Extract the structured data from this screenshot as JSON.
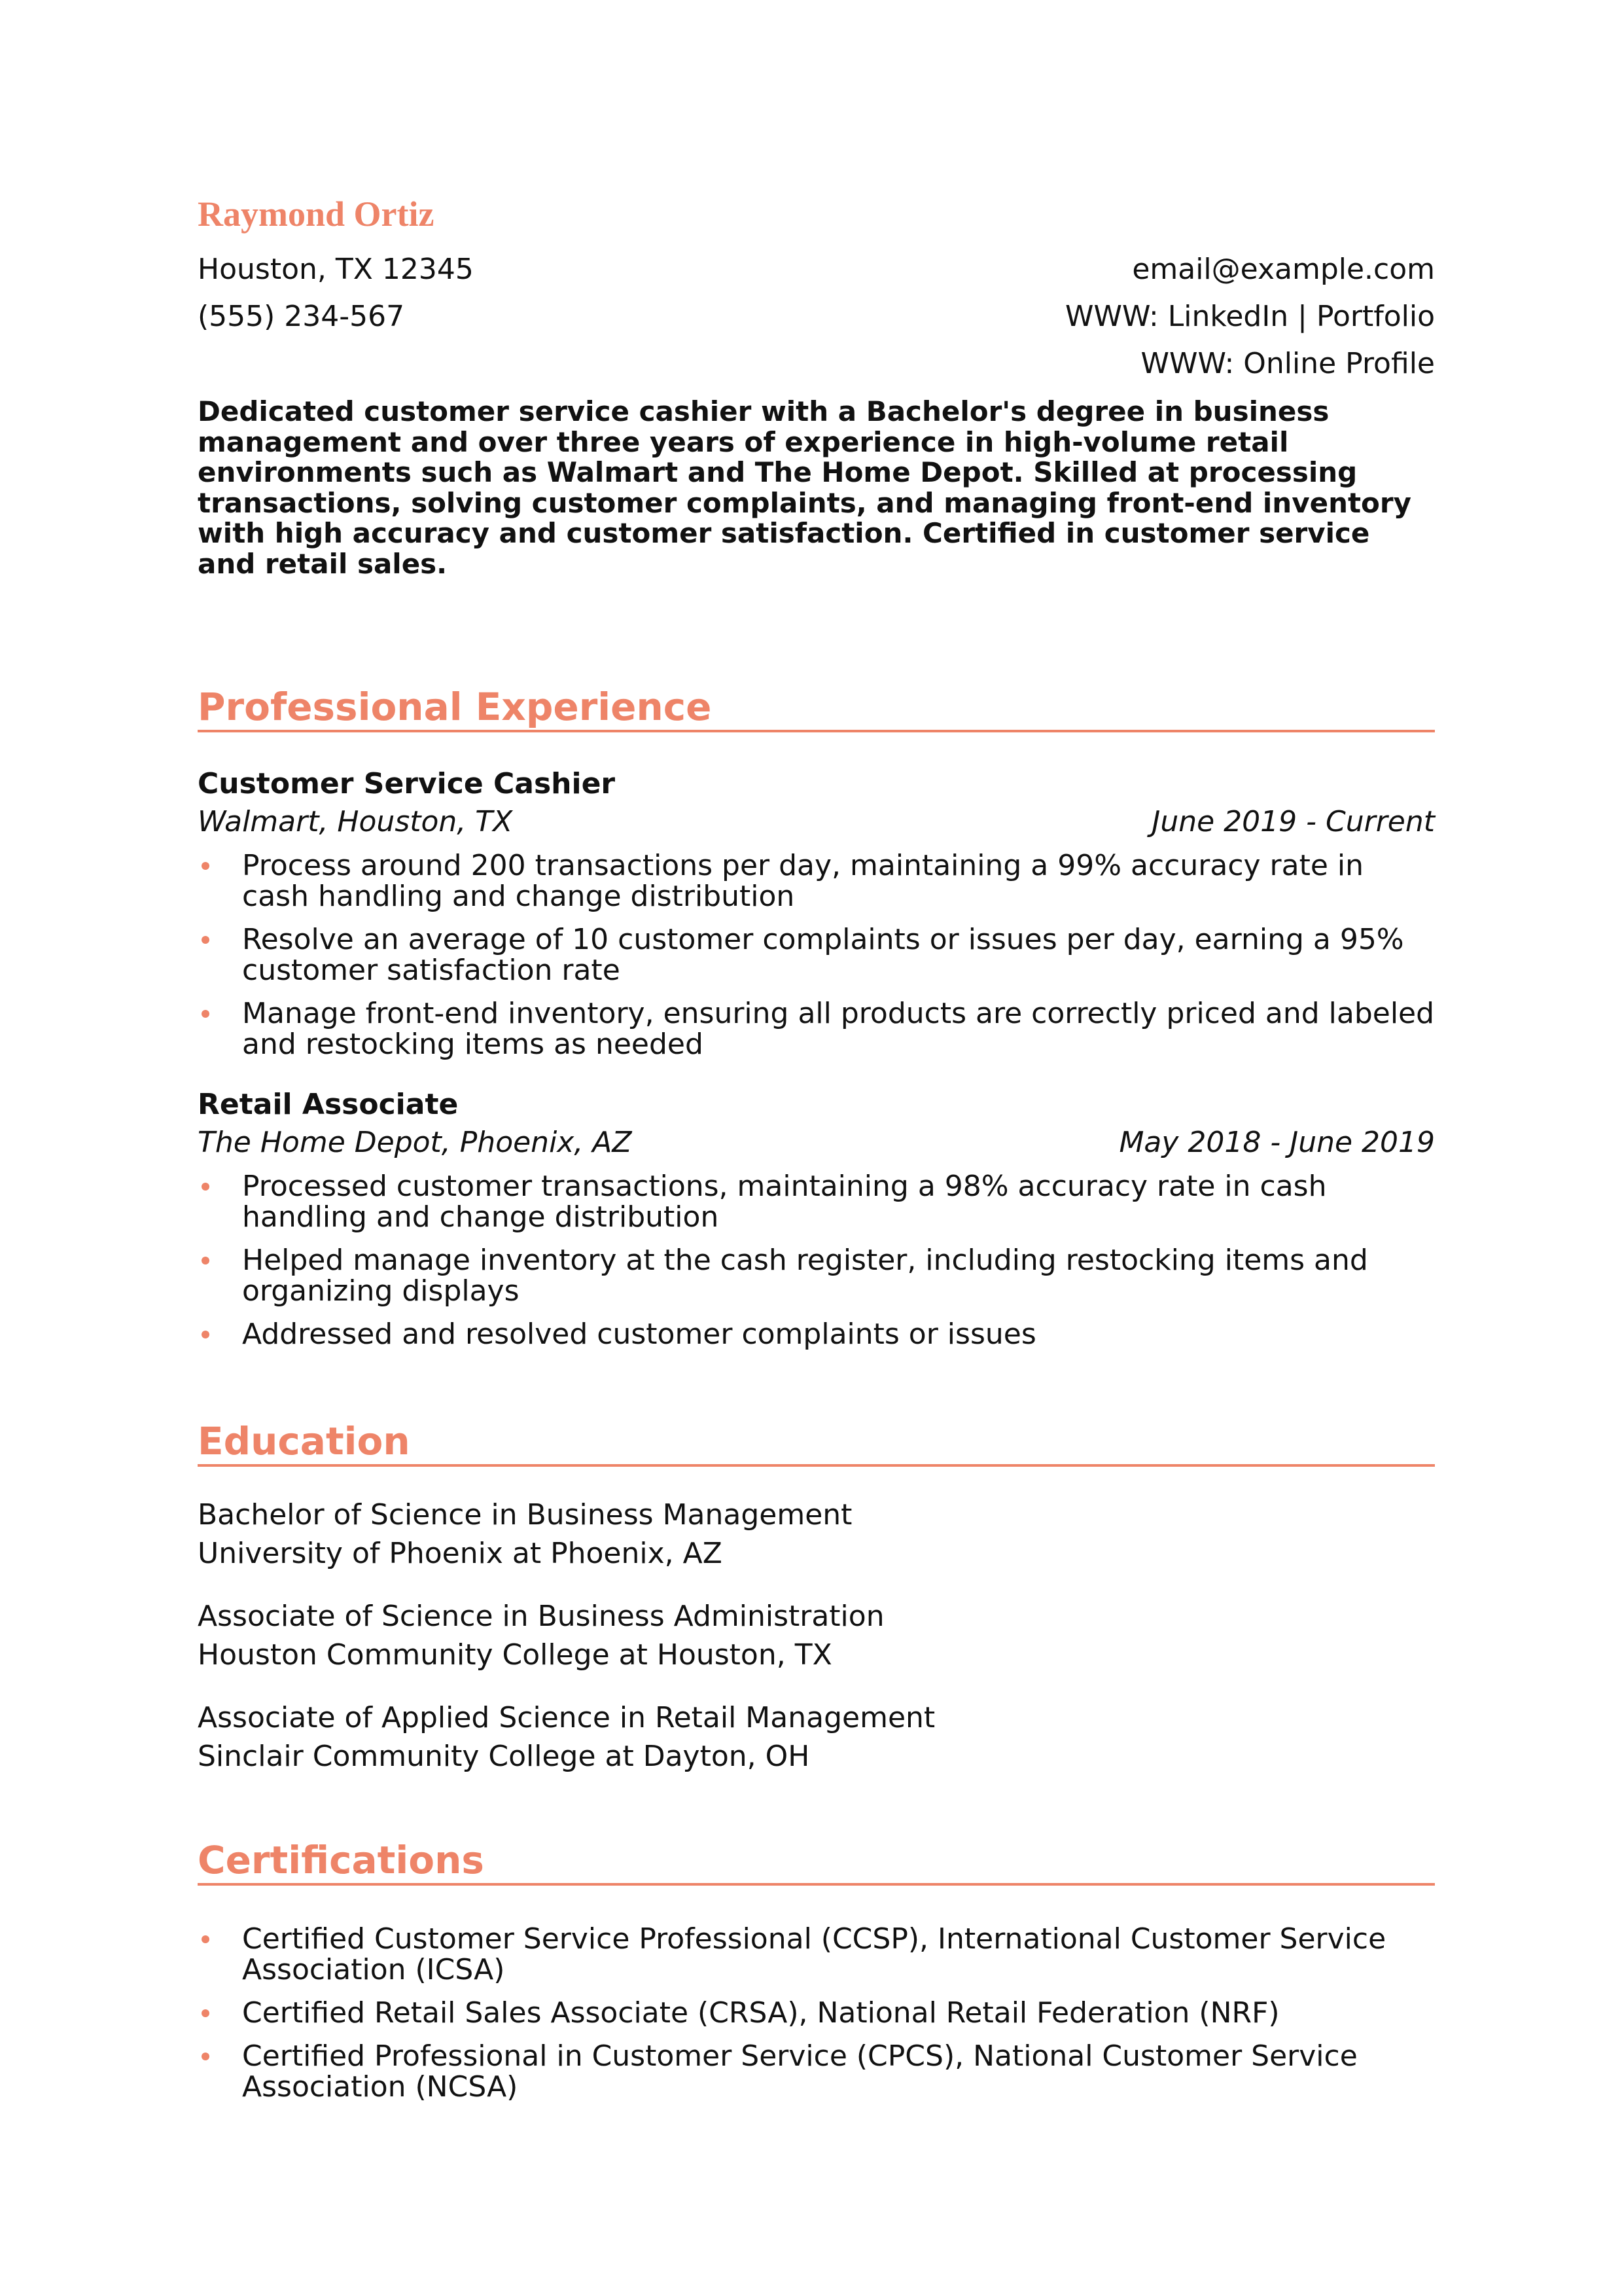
{
  "header": {
    "name": "Raymond Ortiz",
    "location": "Houston, TX 12345",
    "phone": "(555) 234-567",
    "email": "email@example.com",
    "links": [
      "WWW: LinkedIn | Portfolio",
      "WWW: Online Profile"
    ]
  },
  "summary": "Dedicated customer service cashier with a Bachelor's degree in business management and over three years of experience in high-volume retail environments such as Walmart and The Home Depot. Skilled at processing transactions, solving customer complaints, and managing front-end inventory with high accuracy and customer satisfaction. Certified in customer service and retail sales.",
  "experience": {
    "title": "Professional Experience",
    "jobs": [
      {
        "title": "Customer Service Cashier",
        "company": "Walmart, Houston, TX",
        "dates": "June 2019 - Current",
        "bullets": [
          "Process around 200 transactions per day, maintaining a 99% accuracy rate in cash handling and change distribution",
          "Resolve an average of 10 customer complaints or issues per day, earning a 95% customer satisfaction rate",
          "Manage front-end inventory, ensuring all products are correctly priced and labeled and restocking items as needed"
        ]
      },
      {
        "title": "Retail Associate",
        "company": "The Home Depot, Phoenix, AZ",
        "dates": "May 2018 - June 2019",
        "bullets": [
          "Processed customer transactions, maintaining a 98% accuracy rate in cash handling and change distribution",
          "Helped manage inventory at the cash register, including restocking items and organizing displays",
          "Addressed and resolved customer complaints or issues"
        ]
      }
    ]
  },
  "education": {
    "title": "Education",
    "items": [
      {
        "degree": "Bachelor of Science in Business Management",
        "school": "University of Phoenix at Phoenix, AZ"
      },
      {
        "degree": "Associate of Science in Business Administration",
        "school": "Houston Community College at Houston, TX"
      },
      {
        "degree": "Associate of Applied Science in Retail Management",
        "school": "Sinclair Community College at Dayton, OH"
      }
    ]
  },
  "certifications": {
    "title": "Certifications",
    "items": [
      "Certified Customer Service Professional (CCSP), International Customer Service Association (ICSA)",
      "Certified Retail Sales Associate (CRSA), National Retail Federation (NRF)",
      "Certified Professional in Customer Service (CPCS), National Customer Service Association (NCSA)"
    ]
  }
}
